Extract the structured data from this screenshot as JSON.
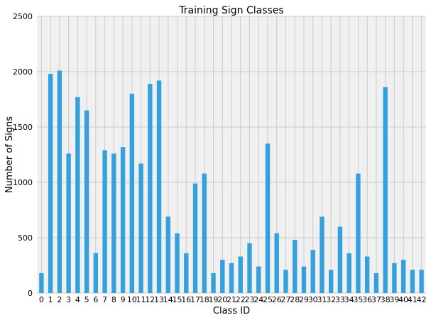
{
  "chart_data": {
    "type": "bar",
    "title": "Training Sign Classes",
    "xlabel": "Class ID",
    "ylabel": "Number of Signs",
    "ylim": [
      0,
      2500
    ],
    "yticks": [
      0,
      500,
      1000,
      1500,
      2000,
      2500
    ],
    "grid": true,
    "categories": [
      "0",
      "1",
      "2",
      "3",
      "4",
      "5",
      "6",
      "7",
      "8",
      "9",
      "10",
      "11",
      "12",
      "13",
      "14",
      "15",
      "16",
      "17",
      "18",
      "19",
      "20",
      "21",
      "22",
      "23",
      "24",
      "25",
      "26",
      "27",
      "28",
      "29",
      "30",
      "31",
      "32",
      "33",
      "34",
      "35",
      "36",
      "37",
      "38",
      "39",
      "40",
      "41",
      "42"
    ],
    "values": [
      180,
      1980,
      2010,
      1260,
      1770,
      1650,
      360,
      1290,
      1260,
      1320,
      1800,
      1170,
      1890,
      1920,
      690,
      540,
      360,
      990,
      1080,
      180,
      300,
      270,
      330,
      450,
      240,
      1350,
      540,
      210,
      480,
      240,
      390,
      690,
      210,
      600,
      360,
      1080,
      330,
      180,
      1860,
      270,
      300,
      210,
      210
    ],
    "colors": {
      "bar": "#34a0dc",
      "plot_background": "#f0f0f0",
      "grid": "#cbcbcb"
    }
  }
}
